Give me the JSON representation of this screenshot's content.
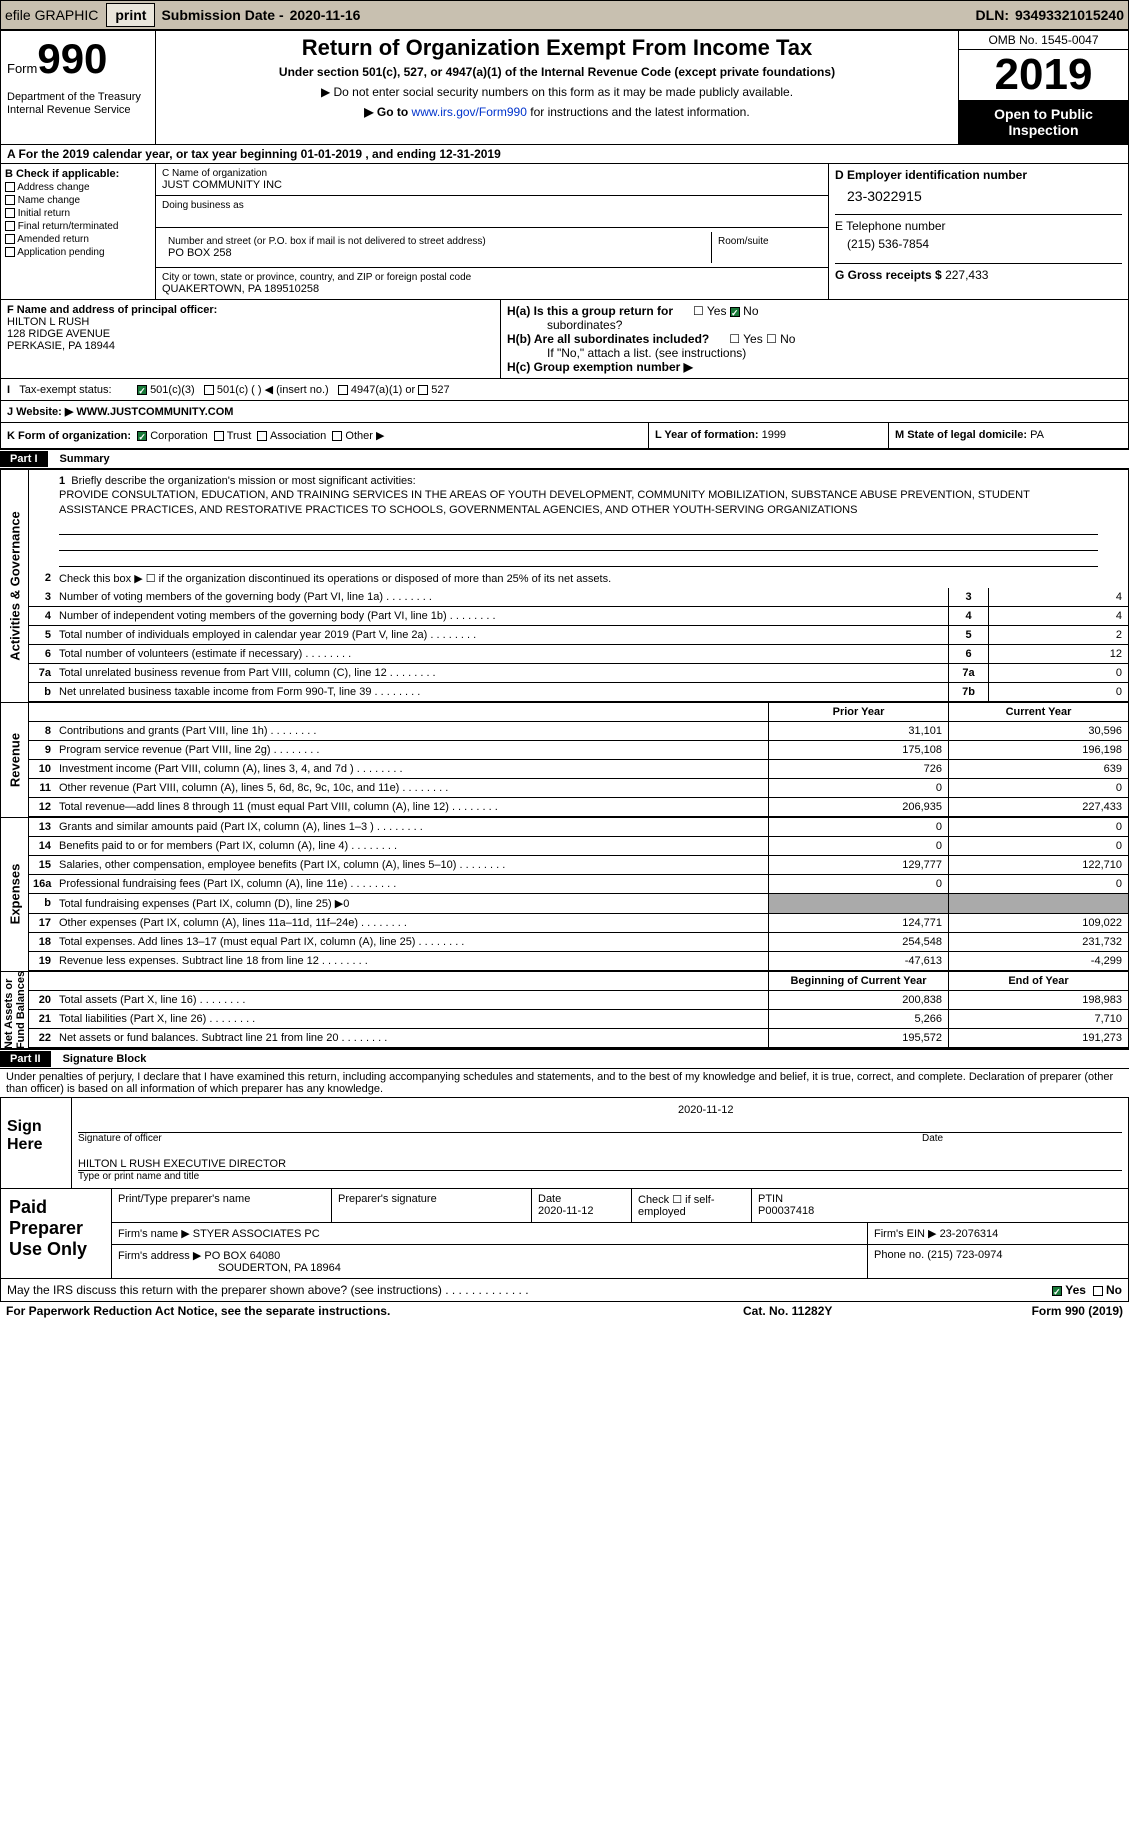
{
  "topbar": {
    "efile": "efile GRAPHIC",
    "print": "print",
    "sub_label": "Submission Date -",
    "sub_date": "2020-11-16",
    "dln_label": "DLN:",
    "dln": "93493321015240"
  },
  "header": {
    "form": "Form",
    "num": "990",
    "dept": "Department of the Treasury\nInternal Revenue Service",
    "title": "Return of Organization Exempt From Income Tax",
    "subtitle": "Under section 501(c), 527, or 4947(a)(1) of the Internal Revenue Code (except private foundations)",
    "note1": "▶ Do not enter social security numbers on this form as it may be made publicly available.",
    "note2": "▶ Go to www.irs.gov/Form990 for instructions and the latest information.",
    "link": "www.irs.gov/Form990",
    "omb": "OMB No. 1545-0047",
    "year": "2019",
    "open": "Open to Public Inspection"
  },
  "line_a": "A For the 2019 calendar year, or tax year beginning 01-01-2019    , and ending 12-31-2019",
  "sec_b": {
    "label": "B Check if applicable:",
    "items": [
      "Address change",
      "Name change",
      "Initial return",
      "Final return/terminated",
      "Amended return",
      "Application pending"
    ]
  },
  "sec_c": {
    "name_label": "C Name of organization",
    "name": "JUST COMMUNITY INC",
    "dba": "Doing business as",
    "street_label": "Number and street (or P.O. box if mail is not delivered to street address)",
    "room": "Room/suite",
    "street": "PO BOX 258",
    "city_label": "City or town, state or province, country, and ZIP or foreign postal code",
    "city": "QUAKERTOWN, PA  189510258"
  },
  "sec_d": {
    "ein_label": "D Employer identification number",
    "ein": "23-3022915",
    "phone_label": "E Telephone number",
    "phone": "(215) 536-7854",
    "gross_label": "G Gross receipts $",
    "gross": "227,433"
  },
  "sec_f": {
    "label": "F Name and address of principal officer:",
    "name": "HILTON L RUSH",
    "addr1": "128 RIDGE AVENUE",
    "addr2": "PERKASIE, PA  18944"
  },
  "sec_h": {
    "ha": "H(a)  Is this a group return for",
    "ha2": "subordinates?",
    "hb": "H(b)  Are all subordinates included?",
    "hb_note": "If \"No,\" attach a list. (see instructions)",
    "hc": "H(c)  Group exemption number ▶"
  },
  "status": {
    "label": "Tax-exempt status:",
    "i1": "501(c)(3)",
    "i2": "501(c) (  ) ◀ (insert no.)",
    "i3": "4947(a)(1) or",
    "i4": "527"
  },
  "line_j": {
    "label": "J    Website: ▶",
    "val": "WWW.JUSTCOMMUNITY.COM"
  },
  "line_k": {
    "label": "K Form of organization:",
    "i1": "Corporation",
    "i2": "Trust",
    "i3": "Association",
    "i4": "Other ▶",
    "l": "L Year of formation:",
    "lv": "1999",
    "m": "M State of legal domicile:",
    "mv": "PA"
  },
  "part1": {
    "num": "Part I",
    "title": "Summary"
  },
  "mission": {
    "num": "1",
    "label": "Briefly describe the organization's mission or most significant activities:",
    "text": "PROVIDE CONSULTATION, EDUCATION, AND TRAINING SERVICES IN THE AREAS OF YOUTH DEVELOPMENT, COMMUNITY MOBILIZATION, SUBSTANCE ABUSE PREVENTION, STUDENT ASSISTANCE PRACTICES, AND RESTORATIVE PRACTICES TO SCHOOLS, GOVERNMENTAL AGENCIES, AND OTHER YOUTH-SERVING ORGANIZATIONS"
  },
  "gov_rows": [
    {
      "n": "2",
      "d": "Check this box ▶ ☐  if the organization discontinued its operations or disposed of more than 25% of its net assets."
    },
    {
      "n": "3",
      "d": "Number of voting members of the governing body (Part VI, line 1a)",
      "k": "3",
      "v": "4"
    },
    {
      "n": "4",
      "d": "Number of independent voting members of the governing body (Part VI, line 1b)",
      "k": "4",
      "v": "4"
    },
    {
      "n": "5",
      "d": "Total number of individuals employed in calendar year 2019 (Part V, line 2a)",
      "k": "5",
      "v": "2"
    },
    {
      "n": "6",
      "d": "Total number of volunteers (estimate if necessary)",
      "k": "6",
      "v": "12"
    },
    {
      "n": "7a",
      "d": "Total unrelated business revenue from Part VIII, column (C), line 12",
      "k": "7a",
      "v": "0"
    },
    {
      "n": "b",
      "d": "Net unrelated business taxable income from Form 990-T, line 39",
      "k": "7b",
      "v": "0"
    }
  ],
  "rev_hdr": {
    "py": "Prior Year",
    "cy": "Current Year"
  },
  "rev_rows": [
    {
      "n": "8",
      "d": "Contributions and grants (Part VIII, line 1h)",
      "py": "31,101",
      "cy": "30,596"
    },
    {
      "n": "9",
      "d": "Program service revenue (Part VIII, line 2g)",
      "py": "175,108",
      "cy": "196,198"
    },
    {
      "n": "10",
      "d": "Investment income (Part VIII, column (A), lines 3, 4, and 7d )",
      "py": "726",
      "cy": "639"
    },
    {
      "n": "11",
      "d": "Other revenue (Part VIII, column (A), lines 5, 6d, 8c, 9c, 10c, and 11e)",
      "py": "0",
      "cy": "0"
    },
    {
      "n": "12",
      "d": "Total revenue—add lines 8 through 11 (must equal Part VIII, column (A), line 12)",
      "py": "206,935",
      "cy": "227,433"
    }
  ],
  "exp_rows": [
    {
      "n": "13",
      "d": "Grants and similar amounts paid (Part IX, column (A), lines 1–3 )",
      "py": "0",
      "cy": "0"
    },
    {
      "n": "14",
      "d": "Benefits paid to or for members (Part IX, column (A), line 4)",
      "py": "0",
      "cy": "0"
    },
    {
      "n": "15",
      "d": "Salaries, other compensation, employee benefits (Part IX, column (A), lines 5–10)",
      "py": "129,777",
      "cy": "122,710"
    },
    {
      "n": "16a",
      "d": "Professional fundraising fees (Part IX, column (A), line 11e)",
      "py": "0",
      "cy": "0"
    },
    {
      "n": "b",
      "d": "Total fundraising expenses (Part IX, column (D), line 25) ▶0",
      "grey": true
    },
    {
      "n": "17",
      "d": "Other expenses (Part IX, column (A), lines 11a–11d, 11f–24e)",
      "py": "124,771",
      "cy": "109,022"
    },
    {
      "n": "18",
      "d": "Total expenses. Add lines 13–17 (must equal Part IX, column (A), line 25)",
      "py": "254,548",
      "cy": "231,732"
    },
    {
      "n": "19",
      "d": "Revenue less expenses. Subtract line 18 from line 12",
      "py": "-47,613",
      "cy": "-4,299"
    }
  ],
  "na_hdr": {
    "py": "Beginning of Current Year",
    "cy": "End of Year"
  },
  "na_rows": [
    {
      "n": "20",
      "d": "Total assets (Part X, line 16)",
      "py": "200,838",
      "cy": "198,983"
    },
    {
      "n": "21",
      "d": "Total liabilities (Part X, line 26)",
      "py": "5,266",
      "cy": "7,710"
    },
    {
      "n": "22",
      "d": "Net assets or fund balances. Subtract line 21 from line 20",
      "py": "195,572",
      "cy": "191,273"
    }
  ],
  "part2": {
    "num": "Part II",
    "title": "Signature Block"
  },
  "declaration": "Under penalties of perjury, I declare that I have examined this return, including accompanying schedules and statements, and to the best of my knowledge and belief, it is true, correct, and complete. Declaration of preparer (other than officer) is based on all information of which preparer has any knowledge.",
  "sign": {
    "here": "Sign Here",
    "sig_off": "Signature of officer",
    "date": "Date",
    "date_val": "2020-11-12",
    "name": "HILTON L RUSH  EXECUTIVE DIRECTOR",
    "name_lbl": "Type or print name and title"
  },
  "paid": {
    "lbl": "Paid Preparer Use Only",
    "r1": {
      "c1": "Print/Type preparer's name",
      "c2": "Preparer's signature",
      "c3": "Date",
      "c3v": "2020-11-12",
      "c4": "Check ☐ if self-employed",
      "c5": "PTIN",
      "c5v": "P00037418"
    },
    "r2": {
      "c1": "Firm's name    ▶",
      "c1v": "STYER ASSOCIATES PC",
      "c2": "Firm's EIN ▶",
      "c2v": "23-2076314"
    },
    "r3": {
      "c1": "Firm's address ▶",
      "c1v": "PO BOX 64080",
      "c1v2": "SOUDERTON, PA  18964",
      "c2": "Phone no.",
      "c2v": "(215) 723-0974"
    }
  },
  "discuss": "May the IRS discuss this return with the preparer shown above? (see instructions)",
  "footer": {
    "l": "For Paperwork Reduction Act Notice, see the separate instructions.",
    "c": "Cat. No. 11282Y",
    "r": "Form 990 (2019)"
  }
}
